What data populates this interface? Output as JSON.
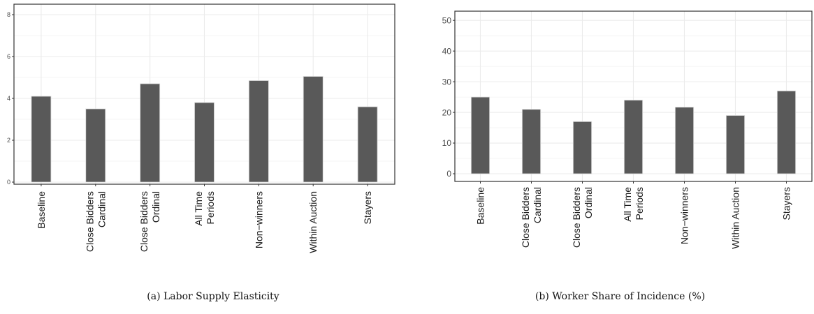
{
  "chart_data": [
    {
      "type": "bar",
      "panel_id": "a",
      "caption": "(a) Labor Supply Elasticity",
      "categories": [
        [
          "Baseline"
        ],
        [
          "Close Bidders",
          "Cardinal"
        ],
        [
          "Close Bidders",
          "Ordinal"
        ],
        [
          "All Time",
          "Periods"
        ],
        [
          "Non−winners"
        ],
        [
          "Within Auction"
        ],
        [
          "Stayers"
        ]
      ],
      "values": [
        4.1,
        3.5,
        4.7,
        3.8,
        4.85,
        5.05,
        3.6
      ],
      "ylim": [
        -0.1,
        8.5
      ],
      "yticks": [
        0,
        2,
        4,
        6,
        8
      ],
      "ytick_labels": [
        "0",
        "2",
        "4",
        "6",
        "8"
      ],
      "grid": true,
      "bar_color": "#595959",
      "bar_outline": "#d9d9d9"
    },
    {
      "type": "bar",
      "panel_id": "b",
      "caption": "(b) Worker Share of Incidence (%)",
      "categories": [
        [
          "Baseline"
        ],
        [
          "Close Bidders",
          "Cardinal"
        ],
        [
          "Close Bidders",
          "Ordinal"
        ],
        [
          "All Time",
          "Periods"
        ],
        [
          "Non−winners"
        ],
        [
          "Within Auction"
        ],
        [
          "Stayers"
        ]
      ],
      "values": [
        25,
        21,
        17,
        24,
        21.7,
        19,
        27
      ],
      "ylim": [
        -2.5,
        53
      ],
      "yticks": [
        0,
        10,
        20,
        30,
        40,
        50
      ],
      "ytick_labels": [
        "0",
        "10",
        "20",
        "30",
        "40",
        "50"
      ],
      "grid": true,
      "bar_color": "#595959",
      "bar_outline": "#d9d9d9"
    }
  ]
}
